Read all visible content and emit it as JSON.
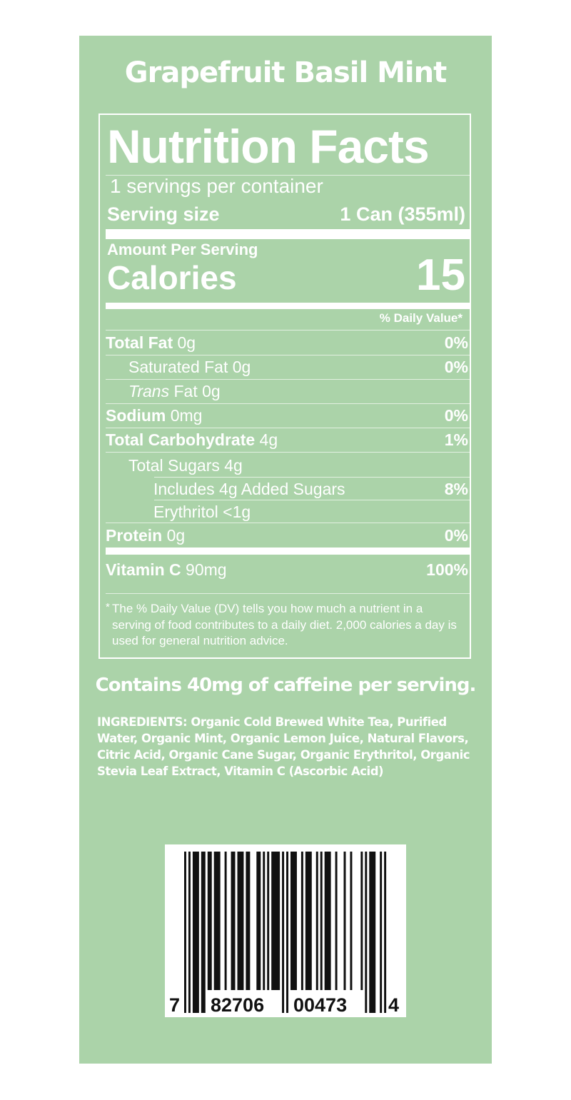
{
  "product_name": "Grapefruit Basil Mint",
  "colors": {
    "panel": "#abd3a9",
    "text": "#ffffff",
    "barcode": "#111111"
  },
  "nutrition": {
    "title": "Nutrition Facts",
    "servings_per_container": "1 servings per container",
    "serving_size_label": "Serving size",
    "serving_size_value": "1 Can (355ml)",
    "amount_per_serving": "Amount Per Serving",
    "calories_label": "Calories",
    "calories_value": "15",
    "dv_header": "% Daily Value*",
    "rows": [
      {
        "bold": "Total Fat",
        "name": "",
        "amount": "0g",
        "dv": "0%"
      },
      {
        "bold": "",
        "name": "Saturated Fat",
        "amount": "0g",
        "dv": "0%"
      },
      {
        "italic": "Trans",
        "name": "Fat",
        "amount": "0g",
        "dv": ""
      },
      {
        "bold": "Sodium",
        "name": "",
        "amount": "0mg",
        "dv": "0%"
      },
      {
        "bold": "Total Carbohydrate",
        "name": "",
        "amount": "4g",
        "dv": "1%"
      },
      {
        "bold": "",
        "name": "Total Sugars",
        "amount": "4g",
        "dv": ""
      },
      {
        "bold": "",
        "name": "Includes 4g Added Sugars",
        "amount": "",
        "dv": "8%"
      },
      {
        "bold": "",
        "name": "Erythritol",
        "amount": "<1g",
        "dv": ""
      },
      {
        "bold": "Protein",
        "name": "",
        "amount": "0g",
        "dv": "0%"
      },
      {
        "bold": "Vitamin C",
        "name": "",
        "amount": "90mg",
        "dv": "100%"
      }
    ],
    "footnote_star": "*",
    "footnote": "The % Daily Value (DV) tells you how much a nutrient in a serving of food contributes to a daily diet. 2,000 calories a day is used for general nutrition advice."
  },
  "caffeine_statement": "Contains 40mg of caffeine per serving.",
  "ingredients": "INGREDIENTS: Organic Cold Brewed White Tea, Purified Water, Organic Mint, Organic Lemon Juice, Natural Flavors, Citric Acid, Organic Cane Sugar, Organic Erythritol, Organic Stevia Leaf Extract, Vitamin C (Ascorbic Acid)",
  "barcode": {
    "number_system": "7",
    "left_group": "82706",
    "right_group": "00473",
    "check_digit": "4"
  }
}
